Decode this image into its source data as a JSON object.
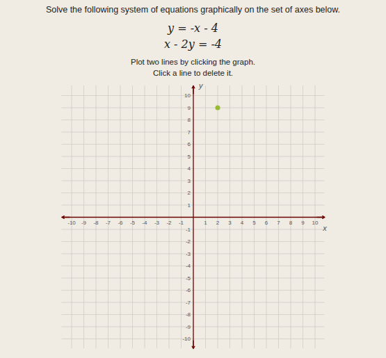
{
  "chart_data": {
    "type": "scatter",
    "title": "Solve the following system of equations graphically on the set of axes below.",
    "annotations": [
      "y = -x - 4",
      "x - 2y = -4",
      "Plot two lines by clicking the graph.",
      "Click a line to delete it."
    ],
    "xlabel": "x",
    "ylabel": "y",
    "x": [
      2
    ],
    "values": [
      9
    ],
    "color": "#99bb33",
    "xlim": [
      -10.8,
      10.8
    ],
    "ylim": [
      -10.8,
      10.8
    ],
    "xticks": [
      -10,
      -9,
      -8,
      -7,
      -6,
      -5,
      -4,
      -3,
      -2,
      -1,
      1,
      2,
      3,
      4,
      5,
      6,
      7,
      8,
      9,
      10
    ],
    "yticks": [
      -10,
      -9,
      -8,
      -7,
      -6,
      -5,
      -4,
      -3,
      -2,
      -1,
      1,
      2,
      3,
      4,
      5,
      6,
      7,
      8,
      9,
      10
    ],
    "grid": true
  }
}
